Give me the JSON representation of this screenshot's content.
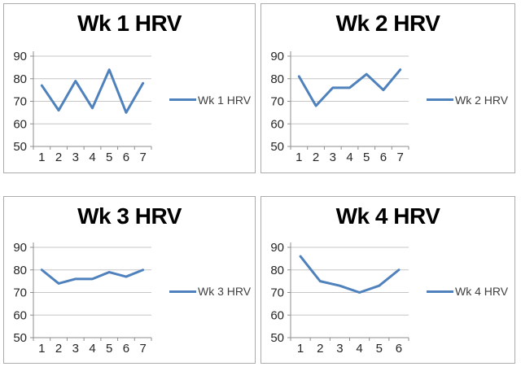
{
  "colors": {
    "line": "#4F81BD",
    "gridline": "#C6C6C6",
    "axis": "#8E8E8E",
    "tick_label": "#262626",
    "title": "#000000",
    "panel_border": "#ABABAB",
    "legend_text": "#404040"
  },
  "chart_data": [
    {
      "type": "line",
      "title": "Wk 1 HRV",
      "legend": "Wk 1 HRV",
      "legend_position": "right",
      "categories": [
        "1",
        "2",
        "3",
        "4",
        "5",
        "6",
        "7"
      ],
      "values": [
        77,
        66,
        79,
        67,
        84,
        65,
        78
      ],
      "xlabel": "",
      "ylabel": "",
      "ylim": [
        50,
        90
      ],
      "yticks": [
        50,
        60,
        70,
        80,
        90
      ],
      "grid": true
    },
    {
      "type": "line",
      "title": "Wk 2 HRV",
      "legend": "Wk 2 HRV",
      "legend_position": "right",
      "categories": [
        "1",
        "2",
        "3",
        "4",
        "5",
        "6",
        "7"
      ],
      "values": [
        81,
        68,
        76,
        76,
        82,
        75,
        84
      ],
      "xlabel": "",
      "ylabel": "",
      "ylim": [
        50,
        90
      ],
      "yticks": [
        50,
        60,
        70,
        80,
        90
      ],
      "grid": true
    },
    {
      "type": "line",
      "title": "Wk 3 HRV",
      "legend": "Wk 3 HRV",
      "legend_position": "right",
      "categories": [
        "1",
        "2",
        "3",
        "4",
        "5",
        "6",
        "7"
      ],
      "values": [
        80,
        74,
        76,
        76,
        79,
        77,
        80
      ],
      "xlabel": "",
      "ylabel": "",
      "ylim": [
        50,
        90
      ],
      "yticks": [
        50,
        60,
        70,
        80,
        90
      ],
      "grid": true
    },
    {
      "type": "line",
      "title": "Wk 4 HRV",
      "legend": "Wk 4 HRV",
      "legend_position": "right",
      "categories": [
        "1",
        "2",
        "3",
        "4",
        "5",
        "6"
      ],
      "values": [
        86,
        75,
        73,
        70,
        73,
        80
      ],
      "xlabel": "",
      "ylabel": "",
      "ylim": [
        50,
        90
      ],
      "yticks": [
        50,
        60,
        70,
        80,
        90
      ],
      "grid": true
    }
  ]
}
